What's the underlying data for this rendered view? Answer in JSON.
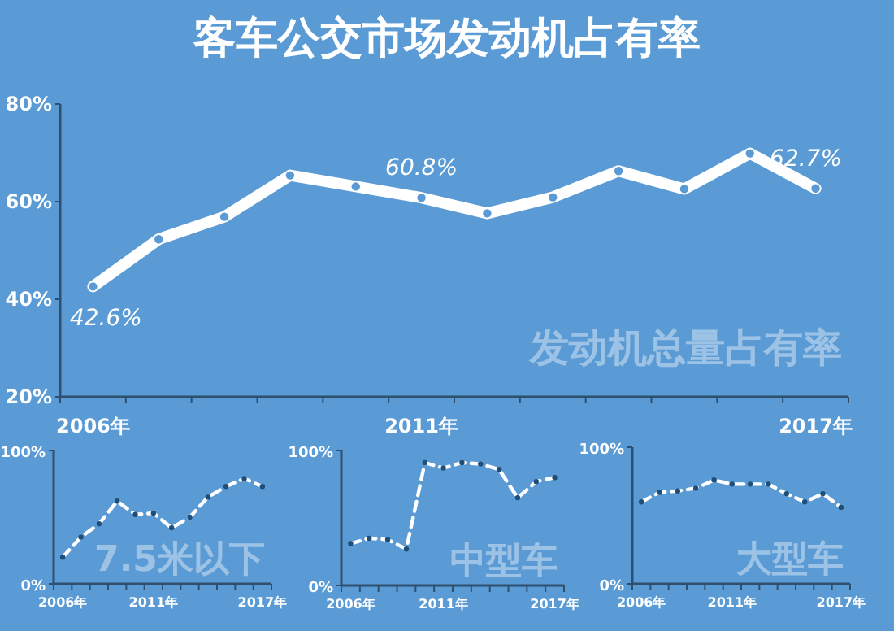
{
  "chart_data": [
    {
      "type": "line",
      "title": "客车公交市场发动机占有率",
      "categories": [
        "2006年",
        null,
        null,
        null,
        null,
        "2011年",
        null,
        null,
        null,
        null,
        null,
        "2017年"
      ],
      "series": [
        {
          "color": "#ffffff",
          "values": [
            42.6,
            52.3,
            56.9,
            65.4,
            63.1,
            60.8,
            57.6,
            60.9,
            66.3,
            62.6,
            69.9,
            62.7
          ]
        }
      ],
      "ylim": [
        20,
        80
      ],
      "yticks": [
        {
          "value": 20,
          "label": "20%"
        },
        {
          "value": 40,
          "label": "40%"
        },
        {
          "value": 60,
          "label": "60%"
        },
        {
          "value": 80,
          "label": "80%"
        }
      ],
      "annotations": [
        {
          "text": "42.6%",
          "x": "2006年",
          "y": 42.6
        },
        {
          "text": "60.8%",
          "x": "2011年",
          "y": 60.8
        },
        {
          "text": "62.7%",
          "x": "2017年",
          "y": 62.7
        },
        "发动机总量占有率"
      ],
      "marker": "circle",
      "line_style": "solid"
    },
    {
      "type": "line",
      "categories": [
        "2006年",
        null,
        null,
        null,
        null,
        "2011年",
        null,
        null,
        null,
        null,
        null,
        "2017年"
      ],
      "series": [
        {
          "color": "#ffffff",
          "values": [
            20,
            35,
            45,
            62,
            52,
            53,
            42,
            50,
            65,
            73,
            79,
            73
          ]
        }
      ],
      "ylim": [
        0,
        100
      ],
      "yticks": [
        {
          "value": 0,
          "label": "0%"
        },
        {
          "value": 100,
          "label": "100%"
        }
      ],
      "annotations": [
        "7.5米以下"
      ],
      "marker": "circle",
      "line_style": "dashed"
    },
    {
      "type": "line",
      "categories": [
        "2006年",
        null,
        null,
        null,
        null,
        "2011年",
        null,
        null,
        null,
        null,
        null,
        "2017年"
      ],
      "series": [
        {
          "color": "#ffffff",
          "values": [
            31,
            35,
            34,
            27,
            91,
            87,
            91,
            90,
            86,
            65,
            77,
            80
          ]
        }
      ],
      "ylim": [
        0,
        100
      ],
      "yticks": [
        {
          "value": 0,
          "label": "0%"
        },
        {
          "value": 100,
          "label": "100%"
        }
      ],
      "annotations": [
        "中型车"
      ],
      "marker": "circle",
      "line_style": "dashed"
    },
    {
      "type": "line",
      "categories": [
        "2006年",
        null,
        null,
        null,
        null,
        "2011年",
        null,
        null,
        null,
        null,
        null,
        "2017年"
      ],
      "series": [
        {
          "color": "#ffffff",
          "values": [
            60,
            67,
            68,
            70,
            76,
            73,
            73,
            73,
            66,
            60,
            66,
            56
          ]
        }
      ],
      "ylim": [
        0,
        100
      ],
      "yticks": [
        {
          "value": 0,
          "label": "0%"
        },
        {
          "value": 100,
          "label": "100%"
        }
      ],
      "annotations": [
        "大型车"
      ],
      "marker": "circle",
      "line_style": "dashed"
    }
  ]
}
